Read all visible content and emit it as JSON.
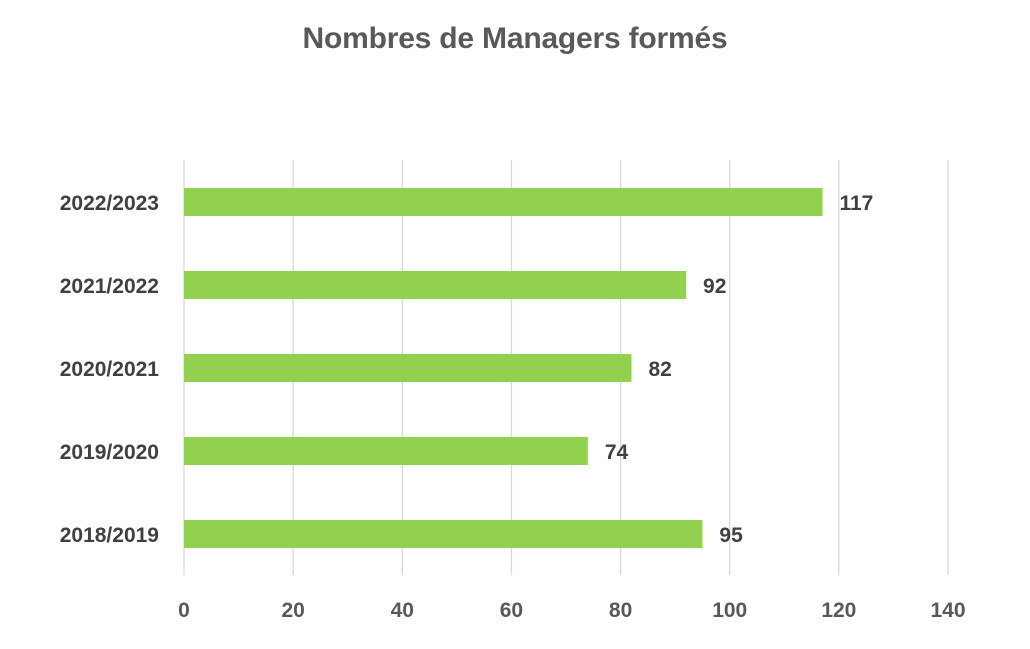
{
  "chart_data": {
    "type": "bar",
    "orientation": "horizontal",
    "title": "Nombres de Managers formés",
    "xlabel": "",
    "ylabel": "",
    "categories": [
      "2022/2023",
      "2021/2022",
      "2020/2021",
      "2019/2020",
      "2018/2019"
    ],
    "values": [
      117,
      92,
      82,
      74,
      95
    ],
    "data_labels": [
      "117",
      "92",
      "82",
      "74",
      "95"
    ],
    "xlim": [
      0,
      140
    ],
    "x_ticks": [
      "0",
      "20",
      "40",
      "60",
      "80",
      "100",
      "120",
      "140"
    ],
    "x_tick_values": [
      0,
      20,
      40,
      60,
      80,
      100,
      120,
      140
    ],
    "grid": "vertical",
    "legend": "none",
    "colors": {
      "bar": "#92d050",
      "grid": "#d9d9d9",
      "text": "#595959",
      "label": "#404040"
    }
  }
}
